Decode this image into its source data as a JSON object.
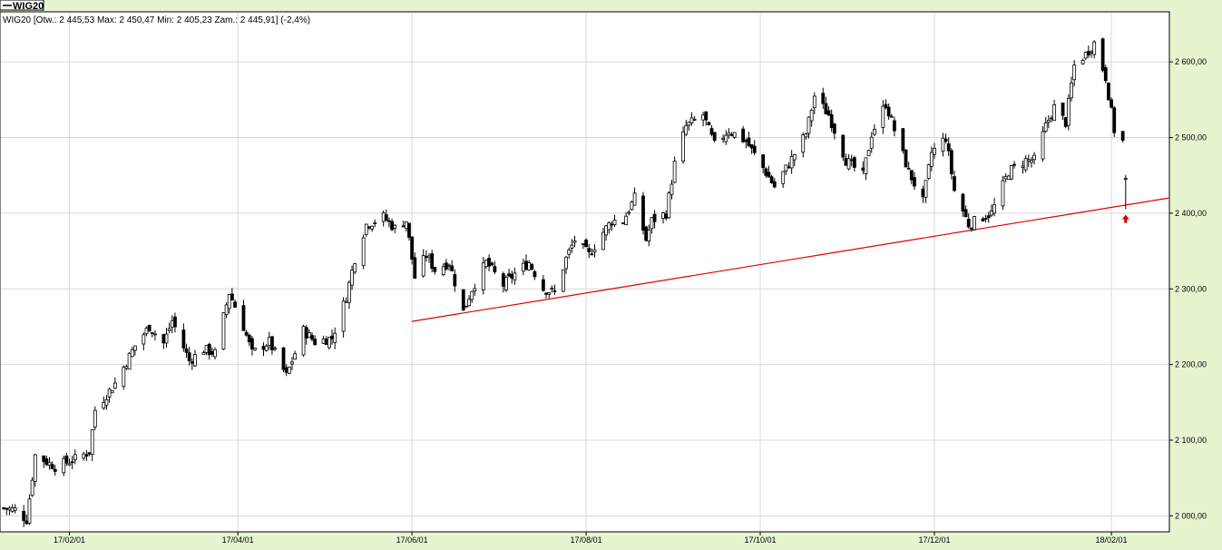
{
  "legend_label": "WIG20",
  "info_line": "WIG20 [Otw.: 2 445,53  Max: 2 450,47  Min: 2 405,23  Zam.: 2 445,91] (-2,4%)",
  "colors": {
    "background": "#e6f5d0",
    "plot_bg": "#ffffff",
    "grid": "#d8d8d8",
    "candle": "#000000",
    "trendline": "#dd0000",
    "arrow": "#cc0000"
  },
  "chart_data": {
    "type": "candlestick",
    "title": "WIG20",
    "ylim": [
      1980,
      2665
    ],
    "xlim": [
      "2017-01-08",
      "2018-02-21"
    ],
    "y_ticks": [
      {
        "value": 2000,
        "label": "2 000,00"
      },
      {
        "value": 2100,
        "label": "2 100,00"
      },
      {
        "value": 2200,
        "label": "2 200,00"
      },
      {
        "value": 2300,
        "label": "2 300,00"
      },
      {
        "value": 2400,
        "label": "2 400,00"
      },
      {
        "value": 2500,
        "label": "2 500,00"
      },
      {
        "value": 2600,
        "label": "2 600,00"
      }
    ],
    "x_ticks": [
      {
        "date": "2017-02-01",
        "label": "17/02/01"
      },
      {
        "date": "2017-04-01",
        "label": "17/04/01"
      },
      {
        "date": "2017-06-01",
        "label": "17/06/01"
      },
      {
        "date": "2017-08-01",
        "label": "17/08/01"
      },
      {
        "date": "2017-10-01",
        "label": "17/10/01"
      },
      {
        "date": "2017-12-01",
        "label": "17/12/01"
      },
      {
        "date": "2018-02-01",
        "label": "18/02/01"
      }
    ],
    "anchors": [
      [
        "2017-01-09",
        2010
      ],
      [
        "2017-01-13",
        2008
      ],
      [
        "2017-01-17",
        1995
      ],
      [
        "2017-01-20",
        2080
      ],
      [
        "2017-01-27",
        2065
      ],
      [
        "2017-02-03",
        2075
      ],
      [
        "2017-02-08",
        2085
      ],
      [
        "2017-02-10",
        2140
      ],
      [
        "2017-02-17",
        2175
      ],
      [
        "2017-02-24",
        2225
      ],
      [
        "2017-03-01",
        2250
      ],
      [
        "2017-03-06",
        2228
      ],
      [
        "2017-03-09",
        2258
      ],
      [
        "2017-03-15",
        2205
      ],
      [
        "2017-03-20",
        2220
      ],
      [
        "2017-03-24",
        2215
      ],
      [
        "2017-03-29",
        2295
      ],
      [
        "2017-04-03",
        2250
      ],
      [
        "2017-04-06",
        2215
      ],
      [
        "2017-04-12",
        2230
      ],
      [
        "2017-04-18",
        2185
      ],
      [
        "2017-04-24",
        2245
      ],
      [
        "2017-04-28",
        2230
      ],
      [
        "2017-05-04",
        2235
      ],
      [
        "2017-05-09",
        2290
      ],
      [
        "2017-05-12",
        2340
      ],
      [
        "2017-05-16",
        2385
      ],
      [
        "2017-05-22",
        2395
      ],
      [
        "2017-05-26",
        2380
      ],
      [
        "2017-05-30",
        2390
      ],
      [
        "2017-06-02",
        2315
      ],
      [
        "2017-06-06",
        2345
      ],
      [
        "2017-06-09",
        2325
      ],
      [
        "2017-06-14",
        2335
      ],
      [
        "2017-06-19",
        2270
      ],
      [
        "2017-06-22",
        2300
      ],
      [
        "2017-06-27",
        2335
      ],
      [
        "2017-07-03",
        2305
      ],
      [
        "2017-07-07",
        2320
      ],
      [
        "2017-07-12",
        2335
      ],
      [
        "2017-07-17",
        2300
      ],
      [
        "2017-07-21",
        2295
      ],
      [
        "2017-07-25",
        2340
      ],
      [
        "2017-07-28",
        2365
      ],
      [
        "2017-08-02",
        2345
      ],
      [
        "2017-08-07",
        2375
      ],
      [
        "2017-08-10",
        2390
      ],
      [
        "2017-08-14",
        2390
      ],
      [
        "2017-08-18",
        2420
      ],
      [
        "2017-08-22",
        2365
      ],
      [
        "2017-08-24",
        2390
      ],
      [
        "2017-08-29",
        2400
      ],
      [
        "2017-09-01",
        2465
      ],
      [
        "2017-09-05",
        2515
      ],
      [
        "2017-09-11",
        2530
      ],
      [
        "2017-09-15",
        2490
      ],
      [
        "2017-09-20",
        2510
      ],
      [
        "2017-09-26",
        2495
      ],
      [
        "2017-10-02",
        2460
      ],
      [
        "2017-10-06",
        2435
      ],
      [
        "2017-10-11",
        2465
      ],
      [
        "2017-10-17",
        2505
      ],
      [
        "2017-10-20",
        2555
      ],
      [
        "2017-10-25",
        2530
      ],
      [
        "2017-10-31",
        2470
      ],
      [
        "2017-11-06",
        2450
      ],
      [
        "2017-11-09",
        2505
      ],
      [
        "2017-11-14",
        2545
      ],
      [
        "2017-11-17",
        2510
      ],
      [
        "2017-11-22",
        2455
      ],
      [
        "2017-11-27",
        2415
      ],
      [
        "2017-11-30",
        2480
      ],
      [
        "2017-12-05",
        2500
      ],
      [
        "2017-12-08",
        2430
      ],
      [
        "2017-12-13",
        2385
      ],
      [
        "2017-12-18",
        2395
      ],
      [
        "2017-12-21",
        2400
      ],
      [
        "2017-12-27",
        2455
      ],
      [
        "2018-01-02",
        2470
      ],
      [
        "2018-01-05",
        2470
      ],
      [
        "2018-01-09",
        2515
      ],
      [
        "2018-01-12",
        2540
      ],
      [
        "2018-01-16",
        2520
      ],
      [
        "2018-01-19",
        2595
      ],
      [
        "2018-01-23",
        2610
      ],
      [
        "2018-01-26",
        2625
      ],
      [
        "2018-01-30",
        2580
      ],
      [
        "2018-02-02",
        2510
      ],
      [
        "2018-02-05",
        2495
      ]
    ],
    "last_candle": {
      "date": "2018-02-06",
      "open": 2445.53,
      "high": 2450.47,
      "low": 2405.23,
      "close": 2445.91
    },
    "annotations": {
      "trendline": {
        "from": [
          "2017-06-01",
          2257
        ],
        "to": [
          "2018-02-21",
          2420
        ]
      },
      "arrow": {
        "date": "2018-02-06",
        "value": 2392
      }
    }
  }
}
